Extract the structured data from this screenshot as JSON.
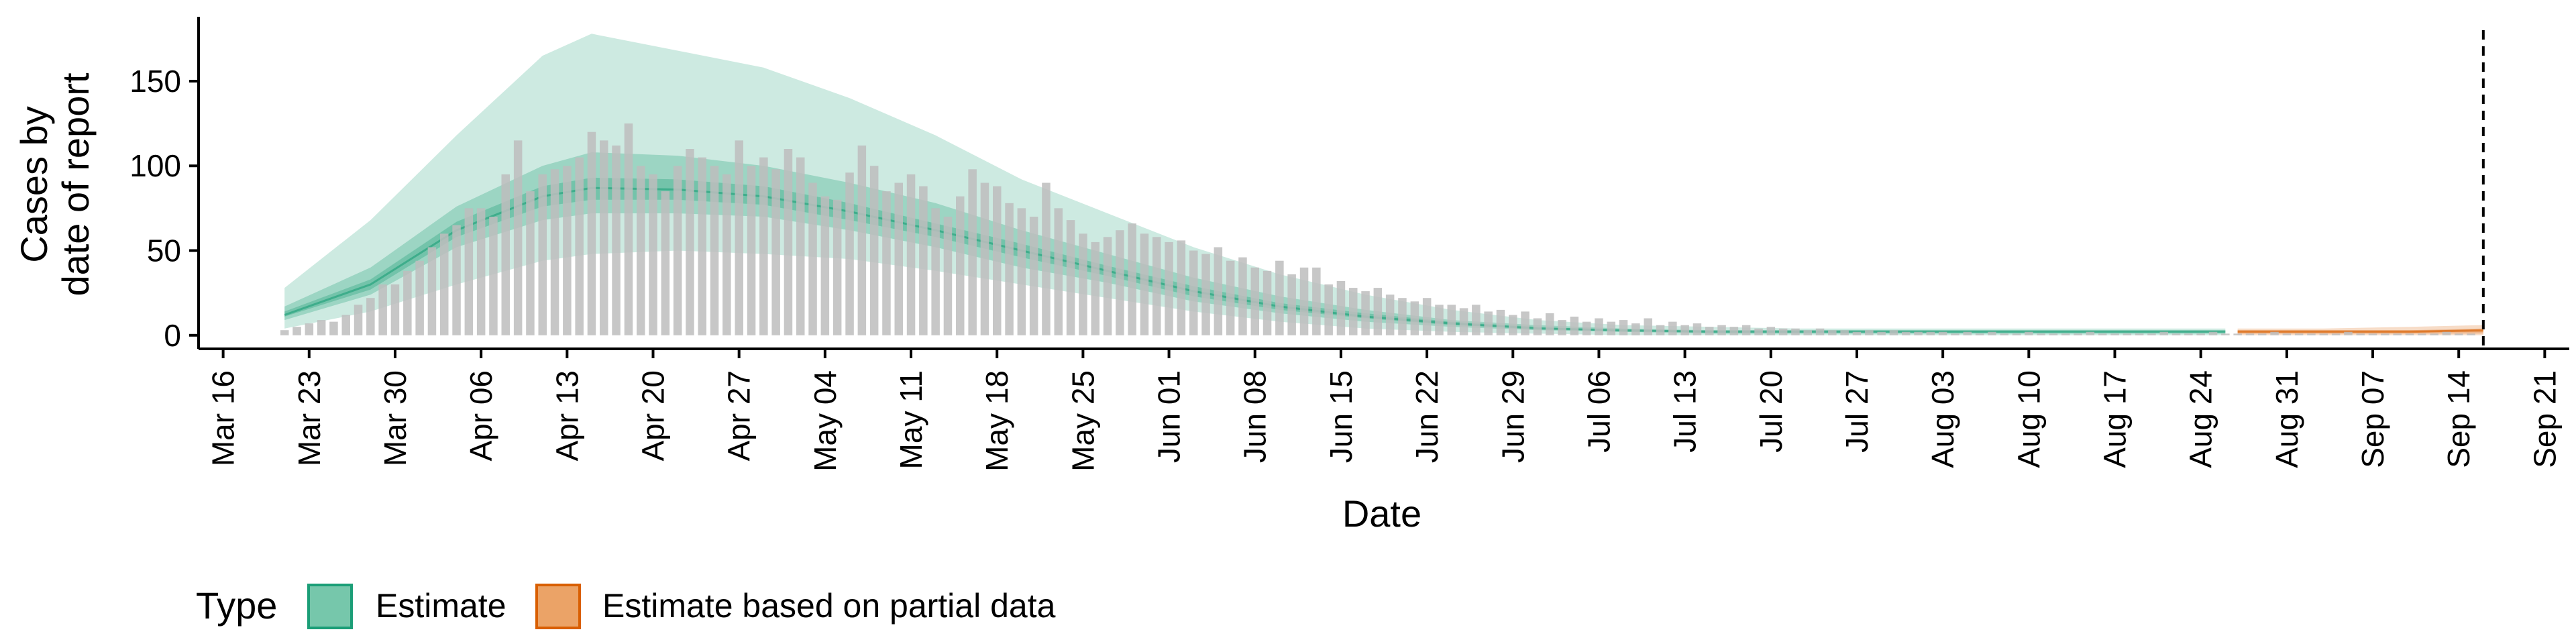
{
  "chart_data": {
    "type": "bar",
    "xlabel": "Date",
    "ylabel_lines": [
      "Cases by",
      "date of report"
    ],
    "ylim": [
      -8,
      188
    ],
    "yticks": [
      0,
      50,
      100,
      150
    ],
    "x_start": "2020-03-14",
    "x_end": "2020-09-23",
    "xtick_labels": [
      "Mar 16",
      "Mar 23",
      "Mar 30",
      "Apr 06",
      "Apr 13",
      "Apr 20",
      "Apr 27",
      "May 04",
      "May 11",
      "May 18",
      "May 25",
      "Jun 01",
      "Jun 08",
      "Jun 15",
      "Jun 22",
      "Jun 29",
      "Jul 06",
      "Jul 13",
      "Jul 20",
      "Jul 27",
      "Aug 03",
      "Aug 10",
      "Aug 17",
      "Aug 24",
      "Aug 31",
      "Sep 07",
      "Sep 14",
      "Sep 21"
    ],
    "xtick_dates": [
      "2020-03-16",
      "2020-03-23",
      "2020-03-30",
      "2020-04-06",
      "2020-04-13",
      "2020-04-20",
      "2020-04-27",
      "2020-05-04",
      "2020-05-11",
      "2020-05-18",
      "2020-05-25",
      "2020-06-01",
      "2020-06-08",
      "2020-06-15",
      "2020-06-22",
      "2020-06-29",
      "2020-07-06",
      "2020-07-13",
      "2020-07-20",
      "2020-07-27",
      "2020-08-03",
      "2020-08-10",
      "2020-08-17",
      "2020-08-24",
      "2020-08-31",
      "2020-09-07",
      "2020-09-14",
      "2020-09-21"
    ],
    "vline_date": "2020-09-16",
    "bars": {
      "start": "2020-03-21",
      "color": "#bdbdbd",
      "values": [
        3,
        5,
        7,
        9,
        8,
        12,
        18,
        22,
        30,
        30,
        38,
        44,
        52,
        60,
        65,
        75,
        75,
        70,
        95,
        115,
        85,
        95,
        98,
        100,
        105,
        120,
        115,
        112,
        125,
        100,
        95,
        85,
        100,
        110,
        105,
        100,
        95,
        115,
        100,
        105,
        98,
        110,
        105,
        90,
        82,
        80,
        96,
        112,
        100,
        85,
        90,
        95,
        88,
        75,
        70,
        82,
        98,
        90,
        88,
        78,
        75,
        70,
        90,
        75,
        68,
        60,
        55,
        58,
        62,
        66,
        60,
        58,
        55,
        56,
        50,
        48,
        52,
        44,
        46,
        40,
        38,
        44,
        36,
        40,
        40,
        30,
        32,
        28,
        26,
        28,
        24,
        22,
        20,
        22,
        18,
        18,
        16,
        18,
        14,
        15,
        12,
        14,
        10,
        13,
        9,
        11,
        8,
        10,
        8,
        9,
        7,
        10,
        6,
        8,
        6,
        7,
        5,
        6,
        5,
        6,
        4,
        5,
        4,
        4,
        3,
        4,
        3,
        3,
        2,
        3,
        2,
        3,
        2,
        2,
        2,
        2,
        1,
        2,
        1,
        2,
        1,
        1,
        2,
        1,
        1,
        1,
        1,
        2,
        1,
        1,
        1,
        1,
        1,
        2,
        1,
        1,
        1,
        2,
        1,
        1,
        1,
        1,
        2,
        1,
        1,
        1,
        1,
        1,
        2,
        1,
        1,
        1,
        1,
        1,
        1,
        1,
        2,
        1,
        1
      ]
    },
    "series": [
      {
        "name": "Estimate",
        "color": "#1b9e77",
        "x": [
          "2020-03-21",
          "2020-03-28",
          "2020-04-04",
          "2020-04-11",
          "2020-04-15",
          "2020-04-22",
          "2020-04-29",
          "2020-05-06",
          "2020-05-13",
          "2020-05-20",
          "2020-05-27",
          "2020-06-03",
          "2020-06-10",
          "2020-06-17",
          "2020-06-24",
          "2020-07-01",
          "2020-07-08",
          "2020-07-15",
          "2020-07-22",
          "2020-08-01",
          "2020-08-10",
          "2020-08-20",
          "2020-08-26"
        ],
        "median": [
          12,
          30,
          62,
          82,
          87,
          86,
          82,
          73,
          62,
          50,
          38,
          26,
          17,
          11,
          7,
          4,
          3,
          2,
          2,
          2,
          2,
          2,
          2
        ],
        "lower90": [
          4,
          14,
          30,
          44,
          48,
          50,
          48,
          45,
          38,
          30,
          22,
          14,
          8,
          4,
          2,
          1,
          0,
          0,
          0,
          0,
          0,
          0,
          0
        ],
        "upper90": [
          28,
          68,
          118,
          165,
          178,
          168,
          158,
          140,
          118,
          92,
          72,
          52,
          36,
          24,
          15,
          9,
          6,
          5,
          4,
          4,
          4,
          4,
          4
        ],
        "lower50": [
          9,
          24,
          52,
          68,
          72,
          72,
          70,
          62,
          52,
          40,
          31,
          20,
          13,
          8,
          5,
          3,
          2,
          1,
          1,
          1,
          1,
          1,
          1
        ],
        "upper50": [
          17,
          40,
          76,
          100,
          108,
          106,
          100,
          90,
          78,
          62,
          48,
          34,
          23,
          15,
          9,
          6,
          4,
          3,
          3,
          3,
          3,
          3,
          3
        ],
        "lower20": [
          11,
          27,
          58,
          76,
          80,
          80,
          77,
          68,
          58,
          46,
          35,
          23,
          15,
          10,
          6,
          4,
          2,
          2,
          2,
          2,
          2,
          2,
          2
        ],
        "upper20": [
          14,
          33,
          67,
          88,
          93,
          92,
          88,
          78,
          66,
          54,
          41,
          29,
          19,
          13,
          8,
          5,
          3,
          3,
          3,
          3,
          3,
          3,
          3
        ]
      },
      {
        "name": "Estimate based on partial data",
        "color": "#d95f02",
        "x": [
          "2020-08-27",
          "2020-09-03",
          "2020-09-10",
          "2020-09-16"
        ],
        "median": [
          2,
          2,
          2,
          3
        ],
        "lower90": [
          0,
          0,
          0,
          0
        ],
        "upper90": [
          4,
          4,
          5,
          6
        ],
        "lower50": [
          1,
          1,
          1,
          1
        ],
        "upper50": [
          3,
          3,
          3,
          4
        ],
        "lower20": [
          2,
          2,
          2,
          2
        ],
        "upper20": [
          3,
          3,
          3,
          3
        ]
      }
    ],
    "legend": {
      "title": "Type",
      "items": [
        {
          "label": "Estimate",
          "fill": "#76c7ab",
          "stroke": "#1b9e77"
        },
        {
          "label": "Estimate based on partial data",
          "fill": "#eba367",
          "stroke": "#d95f02"
        }
      ]
    }
  }
}
